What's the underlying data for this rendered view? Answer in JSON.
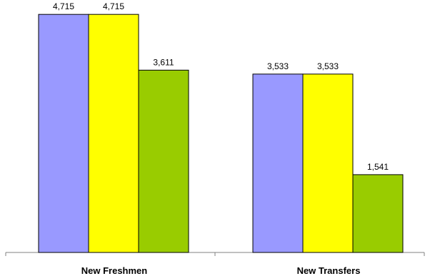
{
  "chart_data": {
    "type": "bar",
    "categories": [
      "New Freshmen",
      "New Transfers"
    ],
    "series": [
      {
        "color": "#9999FF",
        "values": [
          4715,
          3533
        ]
      },
      {
        "color": "#FFFF00",
        "values": [
          4715,
          3533
        ]
      },
      {
        "color": "#99CC00",
        "values": [
          3611,
          1541
        ]
      }
    ],
    "value_labels": [
      [
        "4,715",
        "4,715",
        "3,611"
      ],
      [
        "3,533",
        "3,533",
        "1,541"
      ]
    ],
    "title": "",
    "xlabel": "",
    "ylabel": "",
    "ylim": [
      0,
      5000
    ],
    "grid": false,
    "legend": "none"
  }
}
